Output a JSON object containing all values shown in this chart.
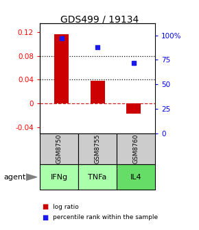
{
  "title": "GDS499 / 19134",
  "categories": [
    "IFNg",
    "TNFa",
    "IL4"
  ],
  "sample_ids": [
    "GSM8750",
    "GSM8755",
    "GSM8760"
  ],
  "log_ratios": [
    0.116,
    0.038,
    -0.017
  ],
  "percentile_ranks": [
    0.97,
    0.88,
    0.72
  ],
  "bar_color": "#cc0000",
  "dot_color": "#1a1aee",
  "ylim_left": [
    -0.05,
    0.135
  ],
  "ylim_right": [
    0.0,
    1.125
  ],
  "yticks_left": [
    -0.04,
    0.0,
    0.04,
    0.08,
    0.12
  ],
  "ytick_labels_left": [
    "-0.04",
    "0",
    "0.04",
    "0.08",
    "0.12"
  ],
  "yticks_right": [
    0.0,
    0.25,
    0.5,
    0.75,
    1.0
  ],
  "ytick_labels_right": [
    "0",
    "25",
    "50",
    "75",
    "100%"
  ],
  "hlines_dotted": [
    0.04,
    0.08
  ],
  "zero_line": 0.0,
  "agent_label": "agent",
  "cell_color_gsm": "#cccccc",
  "agent_colors": [
    "#aaffaa",
    "#aaffaa",
    "#66dd66"
  ],
  "legend_items": [
    "log ratio",
    "percentile rank within the sample"
  ]
}
